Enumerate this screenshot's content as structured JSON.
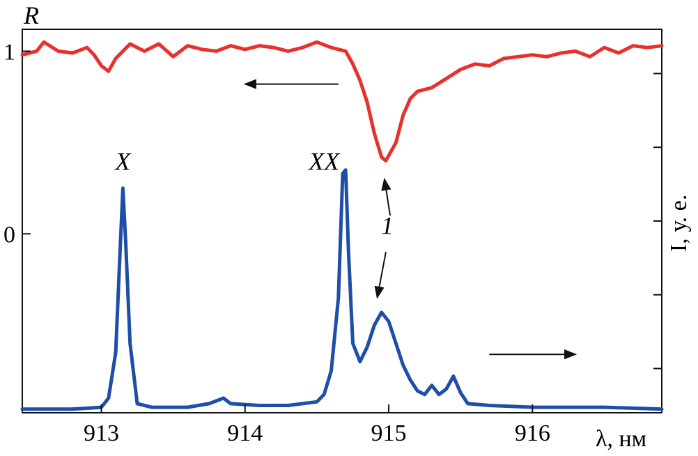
{
  "chart_data": {
    "type": "line",
    "xlabel": "λ, нм",
    "ylabel_left": "R",
    "ylabel_right": "I, у. е.",
    "x_ticks": [
      913,
      914,
      915,
      916
    ],
    "xlim": [
      912.45,
      916.9
    ],
    "y_left_ticks": [
      {
        "value": 0,
        "label": "0"
      },
      {
        "value": 1,
        "label": "1"
      }
    ],
    "ylim_left": [
      -0.98,
      1.12
    ],
    "right_axis_ticks": 5,
    "grid": false,
    "series": [
      {
        "axis": "left",
        "color": "#e8302c",
        "description": "reflectance",
        "points": [
          [
            912.45,
            0.98
          ],
          [
            912.55,
            1.0
          ],
          [
            912.6,
            1.05
          ],
          [
            912.7,
            1.0
          ],
          [
            912.8,
            0.99
          ],
          [
            912.9,
            1.02
          ],
          [
            912.95,
            0.98
          ],
          [
            913.0,
            0.92
          ],
          [
            913.05,
            0.89
          ],
          [
            913.1,
            0.96
          ],
          [
            913.2,
            1.04
          ],
          [
            913.3,
            1.0
          ],
          [
            913.4,
            1.04
          ],
          [
            913.5,
            0.97
          ],
          [
            913.6,
            1.03
          ],
          [
            913.7,
            1.01
          ],
          [
            913.8,
            1.0
          ],
          [
            913.9,
            1.03
          ],
          [
            914.0,
            1.01
          ],
          [
            914.1,
            1.03
          ],
          [
            914.2,
            1.02
          ],
          [
            914.3,
            1.0
          ],
          [
            914.4,
            1.02
          ],
          [
            914.5,
            1.05
          ],
          [
            914.6,
            1.02
          ],
          [
            914.7,
            1.0
          ],
          [
            914.75,
            0.93
          ],
          [
            914.8,
            0.84
          ],
          [
            914.85,
            0.72
          ],
          [
            914.9,
            0.55
          ],
          [
            914.95,
            0.42
          ],
          [
            914.98,
            0.4
          ],
          [
            915.05,
            0.5
          ],
          [
            915.1,
            0.65
          ],
          [
            915.15,
            0.74
          ],
          [
            915.2,
            0.78
          ],
          [
            915.3,
            0.8
          ],
          [
            915.4,
            0.85
          ],
          [
            915.5,
            0.9
          ],
          [
            915.6,
            0.93
          ],
          [
            915.7,
            0.92
          ],
          [
            915.8,
            0.96
          ],
          [
            915.9,
            0.97
          ],
          [
            916.0,
            0.98
          ],
          [
            916.1,
            0.97
          ],
          [
            916.2,
            0.99
          ],
          [
            916.3,
            1.0
          ],
          [
            916.4,
            0.97
          ],
          [
            916.5,
            1.02
          ],
          [
            916.6,
            0.99
          ],
          [
            916.7,
            1.03
          ],
          [
            916.8,
            1.02
          ],
          [
            916.9,
            1.03
          ]
        ]
      },
      {
        "axis": "left",
        "color": "#1f4ea8",
        "description": "photoluminescence intensity",
        "points": [
          [
            912.45,
            -0.96
          ],
          [
            912.8,
            -0.96
          ],
          [
            913.0,
            -0.95
          ],
          [
            913.05,
            -0.9
          ],
          [
            913.1,
            -0.65
          ],
          [
            913.13,
            -0.1
          ],
          [
            913.15,
            0.25
          ],
          [
            913.17,
            -0.05
          ],
          [
            913.2,
            -0.6
          ],
          [
            913.25,
            -0.93
          ],
          [
            913.35,
            -0.95
          ],
          [
            913.6,
            -0.95
          ],
          [
            913.75,
            -0.93
          ],
          [
            913.85,
            -0.9
          ],
          [
            913.9,
            -0.93
          ],
          [
            914.1,
            -0.94
          ],
          [
            914.3,
            -0.94
          ],
          [
            914.4,
            -0.93
          ],
          [
            914.5,
            -0.92
          ],
          [
            914.55,
            -0.88
          ],
          [
            914.6,
            -0.75
          ],
          [
            914.65,
            -0.35
          ],
          [
            914.68,
            0.33
          ],
          [
            914.7,
            0.35
          ],
          [
            914.72,
            -0.1
          ],
          [
            914.75,
            -0.6
          ],
          [
            914.8,
            -0.7
          ],
          [
            914.85,
            -0.62
          ],
          [
            914.9,
            -0.5
          ],
          [
            914.95,
            -0.43
          ],
          [
            915.0,
            -0.48
          ],
          [
            915.05,
            -0.6
          ],
          [
            915.1,
            -0.72
          ],
          [
            915.15,
            -0.8
          ],
          [
            915.2,
            -0.86
          ],
          [
            915.25,
            -0.88
          ],
          [
            915.3,
            -0.83
          ],
          [
            915.35,
            -0.88
          ],
          [
            915.4,
            -0.85
          ],
          [
            915.45,
            -0.78
          ],
          [
            915.5,
            -0.87
          ],
          [
            915.55,
            -0.93
          ],
          [
            915.7,
            -0.94
          ],
          [
            916.0,
            -0.95
          ],
          [
            916.5,
            -0.95
          ],
          [
            916.9,
            -0.96
          ]
        ]
      }
    ],
    "annotations": [
      {
        "text": "X",
        "x": 913.15,
        "y": 0.35
      },
      {
        "text": "XX",
        "x": 914.55,
        "y": 0.35
      },
      {
        "text": "1",
        "x": 914.99,
        "y": 0.0
      }
    ],
    "arrows": [
      {
        "name": "arrow-to-left-axis",
        "from": [
          914.65,
          0.82
        ],
        "to": [
          914.0,
          0.82
        ]
      },
      {
        "name": "arrow-to-right-axis",
        "from": [
          915.7,
          -0.66
        ],
        "to": [
          916.3,
          -0.66
        ]
      },
      {
        "name": "arrow-1-to-dip",
        "from": [
          915.01,
          0.1
        ],
        "to": [
          914.97,
          0.3
        ]
      },
      {
        "name": "arrow-1-to-peak",
        "from": [
          914.98,
          -0.1
        ],
        "to": [
          914.92,
          -0.35
        ]
      }
    ]
  }
}
